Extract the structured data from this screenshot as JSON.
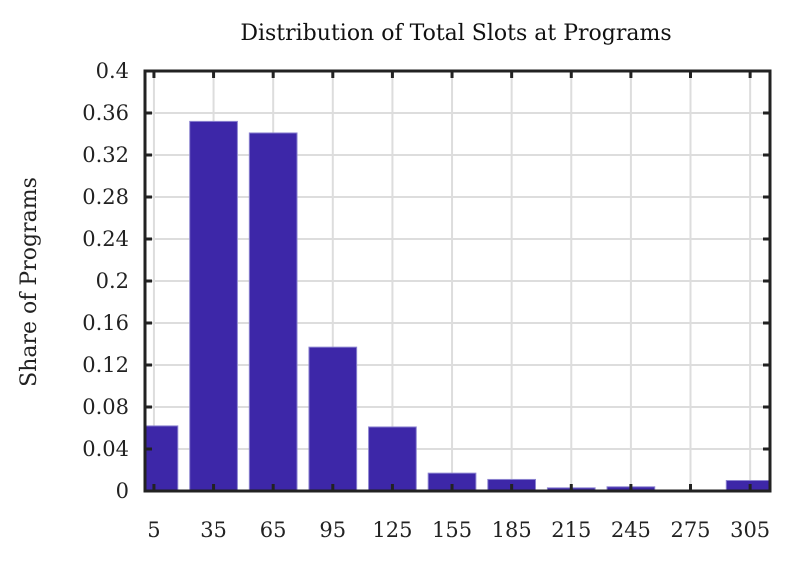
{
  "chart_data": {
    "type": "bar",
    "title": "Distribution of Total Slots at Programs",
    "xlabel": "",
    "ylabel": "Share of Programs",
    "categories": [
      "5",
      "35",
      "65",
      "95",
      "125",
      "155",
      "185",
      "215",
      "245",
      "275",
      "305"
    ],
    "x": [
      5,
      35,
      65,
      95,
      125,
      155,
      185,
      215,
      245,
      275,
      305
    ],
    "values": [
      0.062,
      0.352,
      0.341,
      0.137,
      0.061,
      0.017,
      0.011,
      0.003,
      0.004,
      0.0,
      0.01
    ],
    "bin_width": 24,
    "xlim": [
      0.5,
      315
    ],
    "ylim": [
      0,
      0.4
    ],
    "yticks": [
      0,
      0.04,
      0.08,
      0.12,
      0.16,
      0.2,
      0.24,
      0.28,
      0.32,
      0.36,
      0.4
    ],
    "ytick_labels": [
      "0",
      "0.04",
      "0.08",
      "0.12",
      "0.16",
      "0.2",
      "0.24",
      "0.28",
      "0.32",
      "0.36",
      "0.4"
    ],
    "xticks": [
      5,
      35,
      65,
      95,
      125,
      155,
      185,
      215,
      245,
      275,
      305
    ],
    "xtick_labels": [
      "5",
      "35",
      "65",
      "95",
      "125",
      "155",
      "185",
      "215",
      "245",
      "275",
      "305"
    ],
    "grid": true,
    "legend": "none",
    "colors": {
      "bar": "#3d27a8",
      "grid": "#dddddd",
      "axis": "#222222"
    }
  }
}
